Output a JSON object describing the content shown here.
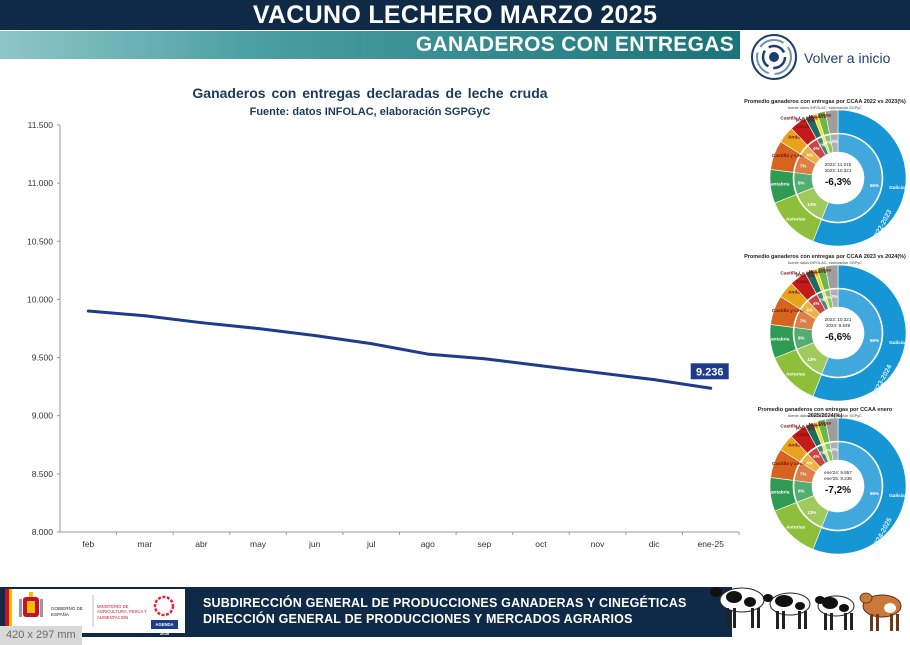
{
  "header": {
    "title": "VACUNO LECHERO MARZO 2025",
    "subtitle": "GANADEROS CON ENTREGAS",
    "home_link": "Volver a inicio"
  },
  "colors": {
    "navy": "#0f2a47",
    "line": "#1f3b8c",
    "teal": "#1b7479"
  },
  "chart_data": [
    {
      "type": "line",
      "title": "Ganaderos  con  entregas  declaradas  de  leche  cruda",
      "subtitle": "Fuente: datos INFOLAC, elaboración SGPGyC",
      "categories": [
        "feb",
        "mar",
        "abr",
        "may",
        "jun",
        "jul",
        "ago",
        "sep",
        "oct",
        "nov",
        "dic",
        "ene-25"
      ],
      "series": [
        {
          "values": [
            9900,
            9860,
            9800,
            9750,
            9690,
            9620,
            9530,
            9490,
            9430,
            9370,
            9310,
            9236
          ]
        }
      ],
      "ylim": [
        8000,
        11500
      ],
      "yticks": [
        "8.000",
        "8.500",
        "9.000",
        "9.500",
        "10.000",
        "10.500",
        "11.000",
        "11.500"
      ],
      "end_label": "9.236",
      "grid": false
    },
    {
      "type": "pie",
      "title": "Promedio ganaderos con entregas por CCAA 2022 vs 2023(%)",
      "source": "fuente datos INFOLAC, elaboración SGPyC",
      "center_lines": [
        "2022: 11.015",
        "2023: 10.321"
      ],
      "center_value": "-6,3%",
      "ring_label": "2022-2023",
      "slices": [
        {
          "label": "Galicia",
          "value": 56,
          "pct": "56%",
          "color": "#1796d6"
        },
        {
          "label": "Asturias",
          "value": 13,
          "pct": "13%",
          "color": "#8dbf3a"
        },
        {
          "label": "Cantabria",
          "value": 8,
          "pct": "8%",
          "color": "#2e9a52"
        },
        {
          "label": "Castilla y León",
          "value": 7,
          "pct": "7%",
          "color": "#d6641e"
        },
        {
          "label": "Andalucía",
          "value": 4,
          "pct": "4%",
          "color": "#e8a21c"
        },
        {
          "label": "Cataluña",
          "value": 4,
          "pct": "4%",
          "color": "#c41a1a"
        },
        {
          "label": "País Vasco",
          "value": 2,
          "pct": "2%",
          "color": "#1e6b62"
        },
        {
          "label": "Castilla-La Mancha",
          "value": 1,
          "pct": "1%",
          "color": "#f0e020"
        },
        {
          "label": "Navarra",
          "value": 2,
          "pct": "2%",
          "color": "#6ab84a"
        },
        {
          "label": "Otras",
          "value": 3,
          "pct": "3%",
          "color": "#9e9e9e"
        }
      ]
    },
    {
      "type": "pie",
      "title": "Promedio ganaderos con entregas por CCAA 2023 vs 2024(%)",
      "source": "fuente datos INFOLAC, elaboración SGPyC",
      "center_lines": [
        "2023: 10.321",
        "2024: 9.639"
      ],
      "center_value": "-6,6%",
      "ring_label": "2023-2024",
      "slices": [
        {
          "label": "Galicia",
          "value": 56,
          "pct": "56%",
          "color": "#1796d6"
        },
        {
          "label": "Asturias",
          "value": 13,
          "pct": "13%",
          "color": "#8dbf3a"
        },
        {
          "label": "Cantabria",
          "value": 8,
          "pct": "8%",
          "color": "#2e9a52"
        },
        {
          "label": "Castilla y León",
          "value": 7,
          "pct": "7%",
          "color": "#d6641e"
        },
        {
          "label": "Andalucía",
          "value": 4,
          "pct": "4%",
          "color": "#e8a21c"
        },
        {
          "label": "Cataluña",
          "value": 4,
          "pct": "4%",
          "color": "#c41a1a"
        },
        {
          "label": "País Vasco",
          "value": 2,
          "pct": "2%",
          "color": "#1e6b62"
        },
        {
          "label": "Castilla-La Mancha",
          "value": 1,
          "pct": "1%",
          "color": "#f0e020"
        },
        {
          "label": "Navarra",
          "value": 2,
          "pct": "2%",
          "color": "#6ab84a"
        },
        {
          "label": "Otras",
          "value": 3,
          "pct": "3%",
          "color": "#9e9e9e"
        }
      ]
    },
    {
      "type": "pie",
      "title": "Promedio ganaderos con entregas por CCAA enero 2025/2024(%)",
      "source": "fuente datos INFOLAC, elaboración SGPyC",
      "center_lines": [
        "ene'24: 9.957",
        "ene'25: 9.236"
      ],
      "center_value": "-7,2%",
      "ring_label": "2024-2025",
      "slices": [
        {
          "label": "Galicia",
          "value": 56,
          "pct": "56%",
          "color": "#1796d6"
        },
        {
          "label": "Asturias",
          "value": 13,
          "pct": "13%",
          "color": "#8dbf3a"
        },
        {
          "label": "Cantabria",
          "value": 8,
          "pct": "8%",
          "color": "#2e9a52"
        },
        {
          "label": "Castilla y León",
          "value": 7,
          "pct": "7%",
          "color": "#d6641e"
        },
        {
          "label": "Andalucía",
          "value": 4,
          "pct": "4%",
          "color": "#e8a21c"
        },
        {
          "label": "Cataluña",
          "value": 4,
          "pct": "4%",
          "color": "#c41a1a"
        },
        {
          "label": "País Vasco",
          "value": 2,
          "pct": "2%",
          "color": "#1e6b62"
        },
        {
          "label": "Castilla-La Mancha",
          "value": 1,
          "pct": "1%",
          "color": "#f0e020"
        },
        {
          "label": "Navarra",
          "value": 2,
          "pct": "2%",
          "color": "#6ab84a"
        },
        {
          "label": "Otras",
          "value": 3,
          "pct": "3%",
          "color": "#9e9e9e"
        }
      ]
    }
  ],
  "footer": {
    "line1": "SUBDIRECCIÓN GENERAL DE PRODUCCIONES GANADERAS Y CINEGÉTICAS",
    "line2": "DIRECCIÓN GENERAL DE PRODUCCIONES Y MERCADOS AGRARIOS",
    "logo_gov": "GOBIERNO DE ESPAÑA",
    "logo_ministry": "MINISTERIO DE AGRICULTURA, PESCA Y ALIMENTACIÓN",
    "logo_agenda": "AGENDA 2030"
  },
  "size_label": "420 x 297 mm"
}
